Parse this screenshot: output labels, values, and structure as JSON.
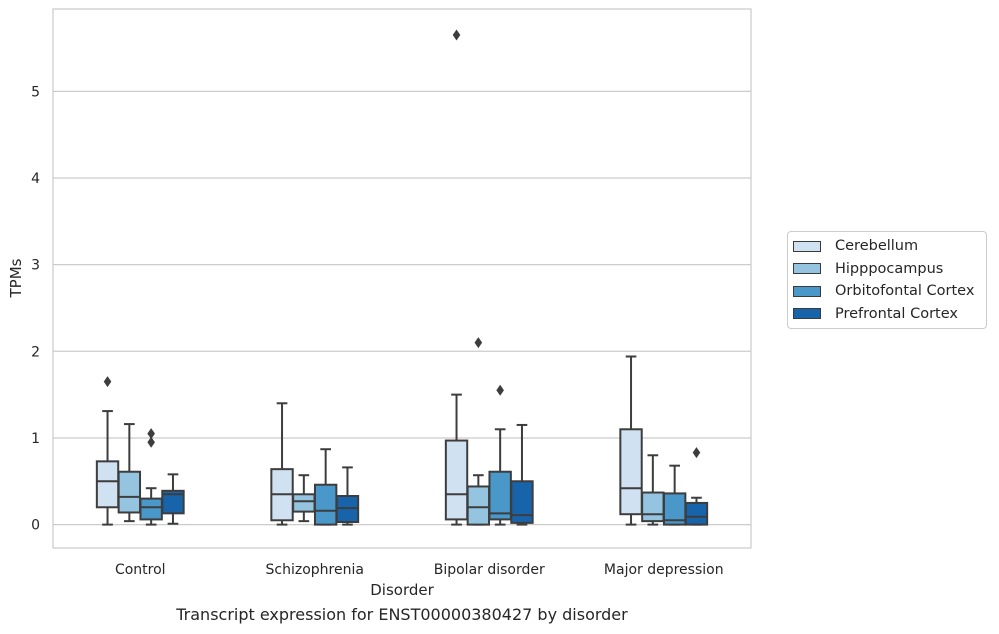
{
  "caption": "Transcript expression for ENST00000380427 by disorder",
  "chart_data": {
    "type": "boxplot",
    "xlabel": "Disorder",
    "ylabel": "TPMs",
    "ylim": [
      -0.27,
      5.95
    ],
    "yticks": [
      "0",
      "1",
      "2",
      "3",
      "4",
      "5"
    ],
    "categories": [
      "Control",
      "Schizophrenia",
      "Bipolar disorder",
      "Major depression"
    ],
    "grid": "horizontal",
    "legend_position": "outside-right",
    "series": [
      {
        "name": "Cerebellum",
        "color": "#d0e1f2",
        "boxes": [
          {
            "min": 0.0,
            "q1": 0.2,
            "median": 0.5,
            "q3": 0.73,
            "max": 1.31,
            "outliers": [
              1.65
            ]
          },
          {
            "min": 0.0,
            "q1": 0.05,
            "median": 0.35,
            "q3": 0.64,
            "max": 1.4,
            "outliers": []
          },
          {
            "min": 0.0,
            "q1": 0.06,
            "median": 0.35,
            "q3": 0.97,
            "max": 1.5,
            "outliers": [
              5.65
            ]
          },
          {
            "min": 0.0,
            "q1": 0.12,
            "median": 0.42,
            "q3": 1.1,
            "max": 1.94,
            "outliers": []
          }
        ]
      },
      {
        "name": "Hipppocampus",
        "color": "#94c4df",
        "boxes": [
          {
            "min": 0.04,
            "q1": 0.14,
            "median": 0.32,
            "q3": 0.61,
            "max": 1.16,
            "outliers": []
          },
          {
            "min": 0.04,
            "q1": 0.15,
            "median": 0.27,
            "q3": 0.35,
            "max": 0.57,
            "outliers": []
          },
          {
            "min": 0.0,
            "q1": 0.0,
            "median": 0.2,
            "q3": 0.44,
            "max": 0.57,
            "outliers": [
              2.1
            ]
          },
          {
            "min": 0.0,
            "q1": 0.04,
            "median": 0.12,
            "q3": 0.37,
            "max": 0.8,
            "outliers": []
          }
        ]
      },
      {
        "name": "Orbitofontal Cortex",
        "color": "#4a98c9",
        "boxes": [
          {
            "min": 0.0,
            "q1": 0.06,
            "median": 0.2,
            "q3": 0.3,
            "max": 0.42,
            "outliers": [
              0.95,
              1.05
            ]
          },
          {
            "min": 0.0,
            "q1": 0.0,
            "median": 0.16,
            "q3": 0.46,
            "max": 0.87,
            "outliers": []
          },
          {
            "min": 0.0,
            "q1": 0.06,
            "median": 0.13,
            "q3": 0.61,
            "max": 1.1,
            "outliers": [
              1.55
            ]
          },
          {
            "min": 0.0,
            "q1": 0.0,
            "median": 0.05,
            "q3": 0.36,
            "max": 0.68,
            "outliers": []
          }
        ]
      },
      {
        "name": "Prefrontal Cortex",
        "color": "#1764ab",
        "boxes": [
          {
            "min": 0.01,
            "q1": 0.13,
            "median": 0.35,
            "q3": 0.39,
            "max": 0.58,
            "outliers": []
          },
          {
            "min": 0.0,
            "q1": 0.03,
            "median": 0.19,
            "q3": 0.33,
            "max": 0.66,
            "outliers": []
          },
          {
            "min": 0.0,
            "q1": 0.02,
            "median": 0.11,
            "q3": 0.5,
            "max": 1.15,
            "outliers": []
          },
          {
            "min": 0.0,
            "q1": 0.0,
            "median": 0.09,
            "q3": 0.25,
            "max": 0.31,
            "outliers": [
              0.83
            ]
          }
        ]
      }
    ]
  }
}
